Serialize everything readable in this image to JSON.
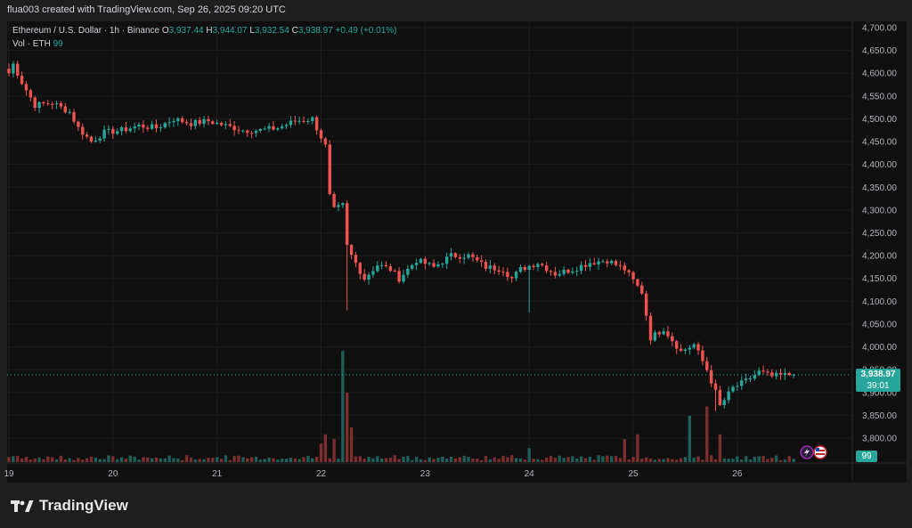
{
  "header": {
    "caption": "flua003 created with TradingView.com, Sep 26, 2025 09:20 UTC"
  },
  "legend": {
    "symbol": "Ethereum / U.S. Dollar · 1h · Binance",
    "open_label": "O",
    "open": "3,937.44",
    "high_label": "H",
    "high": "3,944.07",
    "low_label": "L",
    "low": "3,932.54",
    "close_label": "C",
    "close": "3,938.97",
    "change": "+0.49 (+0.01%)"
  },
  "volume_legend": {
    "label": "Vol · ETH",
    "value": "99"
  },
  "price_tag": {
    "price": "3,938.97",
    "countdown": "39:01"
  },
  "volume_tag": {
    "value": "99"
  },
  "brand": {
    "name": "TradingView"
  },
  "colors": {
    "up": "#26a69a",
    "down": "#ef5350",
    "vol_up": "#1f5e58",
    "vol_down": "#7a2e2e",
    "grid": "#1c1c1c",
    "axis_text": "#b2b5be"
  },
  "icons": [
    "tradingview-logo-icon",
    "lightning-event-icon",
    "us-flag-event-icon"
  ],
  "chart_data": {
    "type": "candlestick",
    "y_ticks": [
      "4,700.00",
      "4,650.00",
      "4,600.00",
      "4,550.00",
      "4,500.00",
      "4,450.00",
      "4,400.00",
      "4,350.00",
      "4,300.00",
      "4,250.00",
      "4,200.00",
      "4,150.00",
      "4,100.00",
      "4,050.00",
      "4,000.00",
      "3,950.00",
      "3,900.00",
      "3,850.00",
      "3,800.00"
    ],
    "y_tick_values": [
      4700,
      4650,
      4600,
      4550,
      4500,
      4450,
      4400,
      4350,
      4300,
      4250,
      4200,
      4150,
      4100,
      4050,
      4000,
      3950,
      3900,
      3850,
      3800
    ],
    "ylim": [
      3770,
      4720
    ],
    "x_tick_labels": [
      "19",
      "20",
      "21",
      "22",
      "23",
      "24",
      "25",
      "26"
    ],
    "x_tick_hours": [
      0,
      24,
      48,
      72,
      96,
      120,
      144,
      168
    ],
    "hours_range": [
      0,
      182
    ],
    "last_price": 3938.97,
    "key_points": [
      [
        0,
        4600
      ],
      [
        1,
        4620
      ],
      [
        3,
        4580
      ],
      [
        6,
        4530
      ],
      [
        10,
        4535
      ],
      [
        14,
        4515
      ],
      [
        16,
        4480
      ],
      [
        19,
        4450
      ],
      [
        22,
        4470
      ],
      [
        26,
        4475
      ],
      [
        30,
        4485
      ],
      [
        34,
        4480
      ],
      [
        38,
        4500
      ],
      [
        42,
        4490
      ],
      [
        46,
        4495
      ],
      [
        50,
        4485
      ],
      [
        54,
        4475
      ],
      [
        58,
        4475
      ],
      [
        62,
        4480
      ],
      [
        66,
        4495
      ],
      [
        70,
        4500
      ],
      [
        71,
        4480
      ],
      [
        73,
        4440
      ],
      [
        74,
        4330
      ],
      [
        75,
        4300
      ],
      [
        77,
        4310
      ],
      [
        78,
        4220
      ],
      [
        79,
        4200
      ],
      [
        82,
        4150
      ],
      [
        85,
        4180
      ],
      [
        88,
        4170
      ],
      [
        90,
        4150
      ],
      [
        94,
        4190
      ],
      [
        98,
        4175
      ],
      [
        102,
        4200
      ],
      [
        106,
        4200
      ],
      [
        110,
        4175
      ],
      [
        114,
        4170
      ],
      [
        116,
        4150
      ],
      [
        118,
        4170
      ],
      [
        122,
        4185
      ],
      [
        126,
        4160
      ],
      [
        130,
        4170
      ],
      [
        134,
        4185
      ],
      [
        138,
        4190
      ],
      [
        142,
        4170
      ],
      [
        146,
        4120
      ],
      [
        148,
        4020
      ],
      [
        151,
        4040
      ],
      [
        155,
        3990
      ],
      [
        158,
        4005
      ],
      [
        161,
        3950
      ],
      [
        163,
        3900
      ],
      [
        164,
        3870
      ],
      [
        167,
        3910
      ],
      [
        170,
        3925
      ],
      [
        173,
        3945
      ],
      [
        176,
        3935
      ],
      [
        180,
        3939
      ]
    ],
    "candle_count": 182,
    "volume_ylim": [
      0,
      480
    ],
    "volume_spikes": [
      [
        72,
        80
      ],
      [
        73,
        120
      ],
      [
        75,
        100
      ],
      [
        77,
        480
      ],
      [
        78,
        300
      ],
      [
        79,
        150
      ],
      [
        120,
        60
      ],
      [
        142,
        100
      ],
      [
        145,
        120
      ],
      [
        157,
        200
      ],
      [
        161,
        240
      ],
      [
        164,
        120
      ]
    ]
  }
}
